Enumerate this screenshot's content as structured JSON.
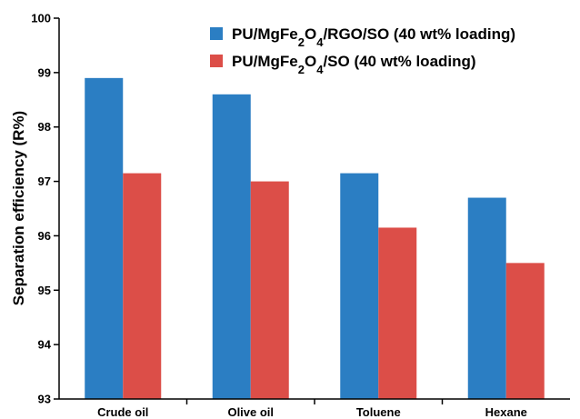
{
  "chart_data": {
    "type": "bar",
    "title": "",
    "xlabel": "",
    "ylabel": "Separation efficiency (R%)",
    "ylim": [
      93,
      100
    ],
    "yticks": [
      93,
      94,
      95,
      96,
      97,
      98,
      99,
      100
    ],
    "categories": [
      "Crude oil",
      "Olive oil",
      "Toluene",
      "Hexane"
    ],
    "series": [
      {
        "name_parts": [
          "PU/MgFe",
          "2",
          "O",
          "4",
          "/RGO/SO (40 wt% loading)"
        ],
        "color": "#2b7ec3",
        "values": [
          98.9,
          98.6,
          97.15,
          96.7
        ]
      },
      {
        "name_parts": [
          "PU/MgFe",
          "2",
          "O",
          "4",
          "/SO (40 wt% loading)"
        ],
        "color": "#dc4e48",
        "values": [
          97.15,
          97.0,
          96.15,
          95.5
        ]
      }
    ],
    "grid": false,
    "legend_position": "top-right"
  }
}
